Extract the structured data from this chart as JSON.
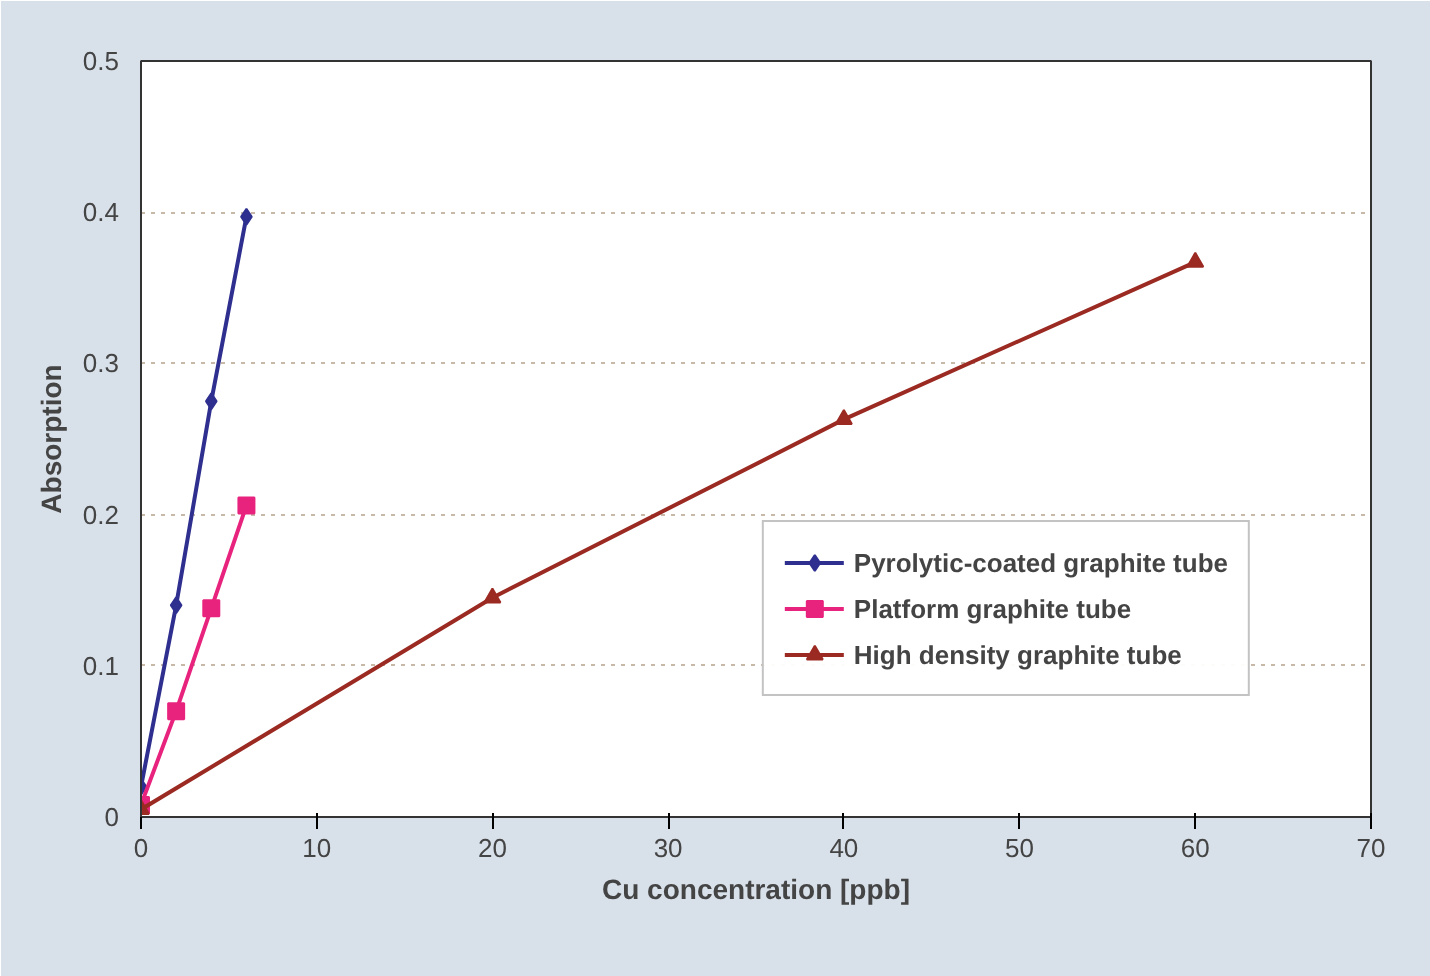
{
  "chart_data": {
    "type": "line",
    "xlabel": "Cu concentration [ppb]",
    "ylabel": "Absorption",
    "xlim": [
      0,
      70
    ],
    "xticks": [
      0,
      10,
      20,
      30,
      40,
      50,
      60,
      70
    ],
    "ylim": [
      0,
      0.5
    ],
    "yticks": [
      0,
      0.1,
      0.2,
      0.3,
      0.4,
      0.5
    ],
    "grid": "y",
    "legend": "bottom right",
    "series": [
      {
        "name": "Pyrolytic-coated graphite tube",
        "color": "#2e2f8f",
        "marker": "diamond",
        "x": [
          0,
          2,
          4,
          6
        ],
        "values": [
          0.02,
          0.14,
          0.275,
          0.397
        ]
      },
      {
        "name": "Platform graphite tube",
        "color": "#e8237e",
        "marker": "square",
        "x": [
          0,
          2,
          4,
          6
        ],
        "values": [
          0.008,
          0.07,
          0.138,
          0.206
        ]
      },
      {
        "name": "High density graphite tube",
        "color": "#9b2a22",
        "marker": "triangle",
        "x": [
          0,
          20,
          40,
          60
        ],
        "values": [
          0.005,
          0.145,
          0.263,
          0.367
        ]
      }
    ]
  }
}
